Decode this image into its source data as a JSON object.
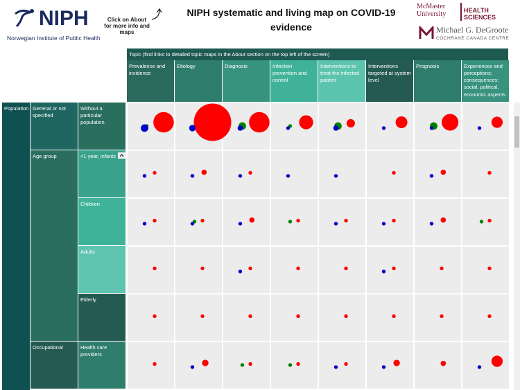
{
  "header": {
    "org_logo": "NIPH",
    "org_name": "Norwegian Institute of Public Health",
    "about_hint": "Click on About for more info and maps",
    "title": "NIPH systematic and living map on COVID-19 evidence",
    "partner_1": "McMaster University",
    "partner_1_unit": "HEALTH SCIENCES",
    "partner_2": "Michael G. DeGroote",
    "partner_2_unit": "COCHRANE CANADA CENTRE"
  },
  "topic_banner": "Topic (find links to detailed topic maps in the About section on the top left of the screen)",
  "columns": [
    {
      "label": "Prevalence and incidence",
      "color": "#2a6a5c"
    },
    {
      "label": "Etiology",
      "color": "#2f7d6c"
    },
    {
      "label": "Diagnosis",
      "color": "#37927e"
    },
    {
      "label": "Infection prevention and control",
      "color": "#40b29a"
    },
    {
      "label": "Interventions to treat the infected patient",
      "color": "#5cc3ae"
    },
    {
      "label": "Interventions targeted at system level",
      "color": "#245a52"
    },
    {
      "label": "Prognosis",
      "color": "#2f7d6c"
    },
    {
      "label": "Experiences and perceptions; consequences; social, political, economic aspects",
      "color": "#37927e"
    }
  ],
  "population_label": "Population",
  "groups": [
    {
      "label": "General or not specified",
      "color": "#1f6660",
      "rows": [
        {
          "label": "Without a particular population",
          "color": "#2a6e5e"
        }
      ]
    },
    {
      "label": "Age group",
      "color": "#2a6e5e",
      "rows": [
        {
          "label": "<1 year, infants",
          "color": "#3aa28c"
        },
        {
          "label": "Children",
          "color": "#3fb29a"
        },
        {
          "label": "Adults",
          "color": "#5ec4b0"
        },
        {
          "label": "Elderly",
          "color": "#245a52"
        }
      ]
    },
    {
      "label": "Occupational",
      "color": "#245a52",
      "rows": [
        {
          "label": "Health care providers",
          "color": "#2f7d6c"
        }
      ]
    }
  ],
  "bubbles": [
    {
      "color": "#ff0000",
      "values": [
        [
          30,
          100,
          30,
          14,
          5,
          10,
          20,
          9
        ],
        [
          1,
          2,
          1,
          null,
          null,
          1,
          2,
          1
        ],
        [
          1,
          1,
          2,
          1,
          1,
          1,
          2,
          1
        ],
        [
          1,
          1,
          1,
          1,
          1,
          1,
          1,
          1
        ],
        [
          1,
          1,
          1,
          1,
          1,
          1,
          1,
          1
        ],
        [
          1,
          3,
          1,
          1,
          1,
          3,
          2,
          9
        ]
      ]
    },
    {
      "color": "#008000",
      "values": [
        [
          1,
          null,
          4,
          1,
          4,
          null,
          4,
          null
        ],
        [
          null,
          null,
          null,
          null,
          null,
          null,
          null,
          null
        ],
        [
          null,
          1,
          null,
          1,
          null,
          null,
          null,
          1
        ],
        [
          null,
          null,
          null,
          null,
          null,
          null,
          null,
          null
        ],
        [
          null,
          null,
          null,
          null,
          null,
          null,
          null,
          null
        ],
        [
          null,
          null,
          1,
          1,
          null,
          null,
          null,
          null
        ]
      ]
    },
    {
      "color": "#0000cc",
      "values": [
        [
          4,
          3,
          2,
          1,
          2,
          1,
          1,
          1
        ],
        [
          1,
          1,
          1,
          1,
          1,
          null,
          1,
          null
        ],
        [
          1,
          1,
          1,
          null,
          1,
          1,
          1,
          null
        ],
        [
          null,
          null,
          1,
          null,
          null,
          1,
          null,
          null
        ],
        [
          null,
          null,
          null,
          null,
          null,
          null,
          null,
          null
        ],
        [
          null,
          1,
          null,
          null,
          1,
          1,
          null,
          1
        ]
      ]
    }
  ]
}
